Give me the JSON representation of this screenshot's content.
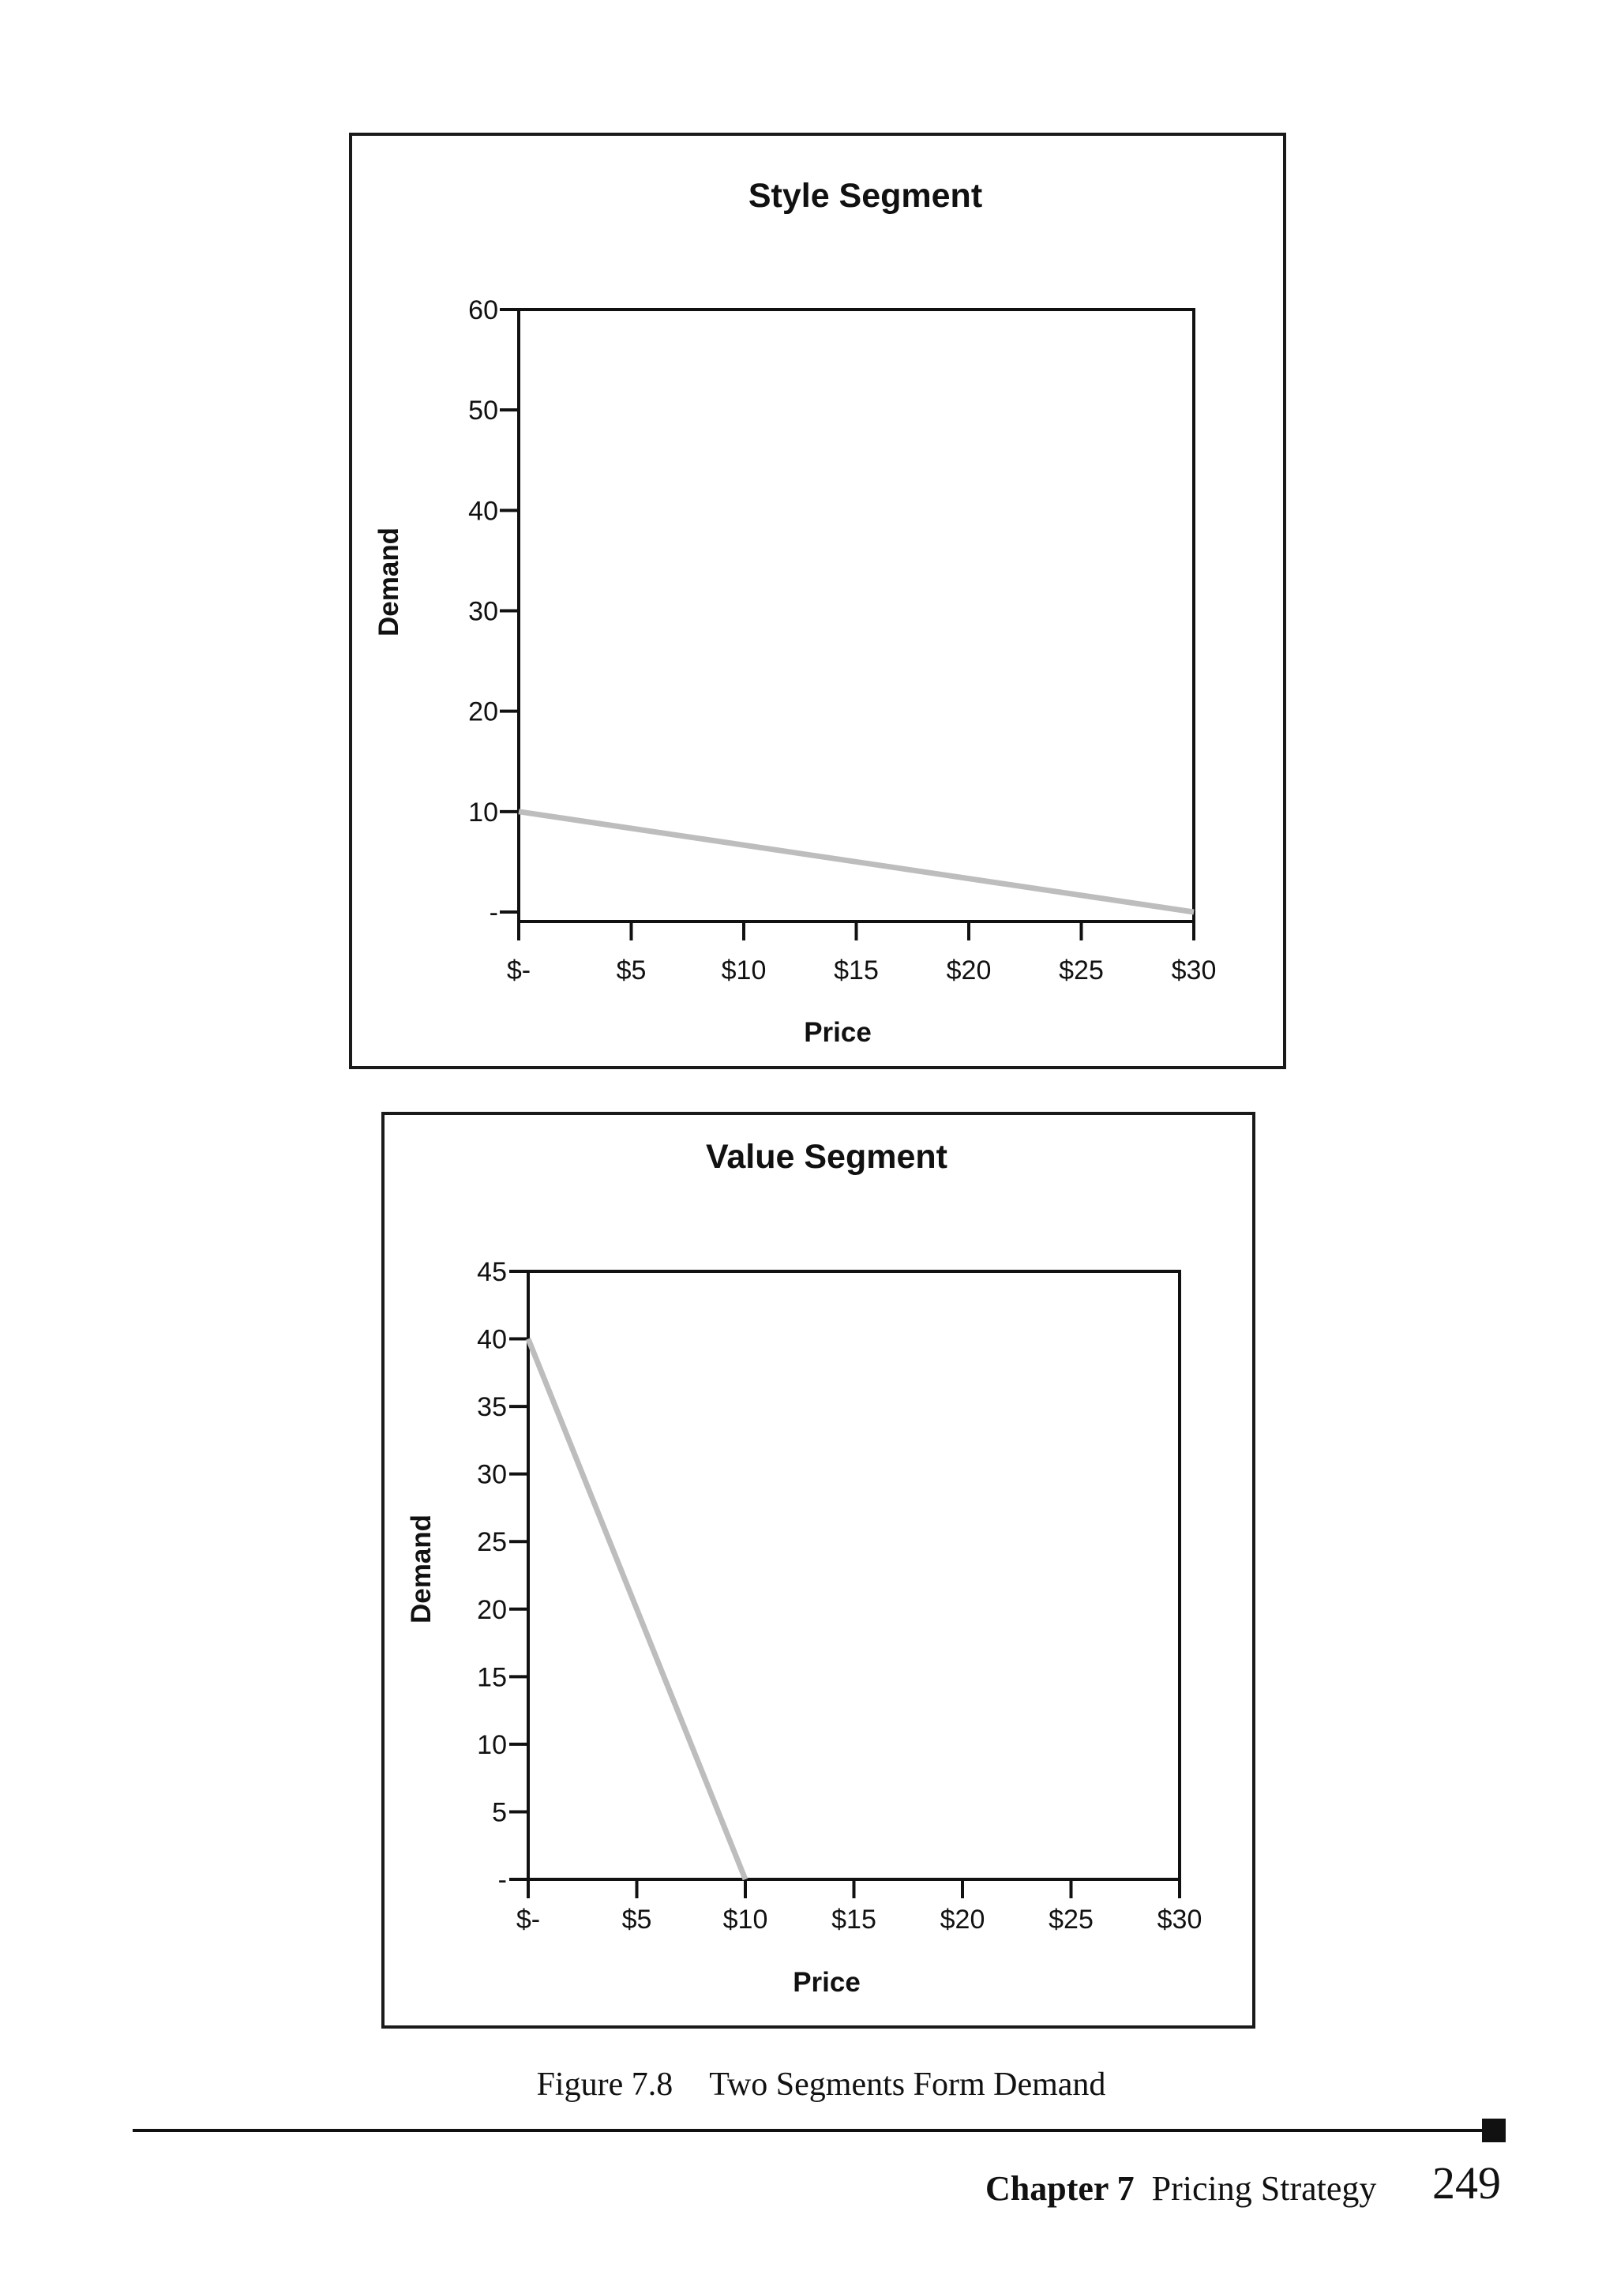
{
  "chart_data": [
    {
      "type": "line",
      "title": "Style Segment",
      "xlabel": "Price",
      "ylabel": "Demand",
      "x_ticks": [
        "$-",
        "$5",
        "$10",
        "$15",
        "$20",
        "$25",
        "$30"
      ],
      "y_ticks": [
        "-",
        "10",
        "20",
        "30",
        "40",
        "50",
        "60"
      ],
      "xlim": [
        0,
        30
      ],
      "ylim": [
        0,
        60
      ],
      "series": [
        {
          "x": [
            0,
            30
          ],
          "y": [
            10,
            0
          ],
          "color": "#bdbdbd"
        }
      ],
      "grid": false
    },
    {
      "type": "line",
      "title": "Value Segment",
      "xlabel": "Price",
      "ylabel": "Demand",
      "x_ticks": [
        "$-",
        "$5",
        "$10",
        "$15",
        "$20",
        "$25",
        "$30"
      ],
      "y_ticks": [
        "-",
        "5",
        "10",
        "15",
        "20",
        "25",
        "30",
        "35",
        "40",
        "45"
      ],
      "xlim": [
        0,
        30
      ],
      "ylim": [
        0,
        45
      ],
      "series": [
        {
          "x": [
            0,
            10
          ],
          "y": [
            40,
            0
          ],
          "color": "#bdbdbd"
        }
      ],
      "grid": false
    }
  ],
  "caption": {
    "number": "Figure 7.8",
    "text": "Two Segments Form Demand"
  },
  "footer": {
    "chapter": "Chapter 7",
    "title": "Pricing Strategy",
    "page": "249"
  }
}
